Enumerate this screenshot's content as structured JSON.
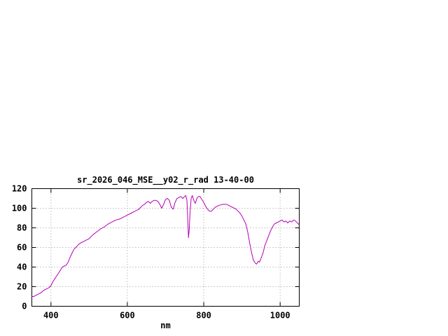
{
  "window": {
    "background": "#ffffff"
  },
  "chart_data": {
    "type": "line",
    "title": "sr_2026_046_MSE__y02_r_rad 13-40-00",
    "xlabel": "nm",
    "ylabel": "",
    "xlim": [
      350,
      1050
    ],
    "ylim": [
      0,
      120
    ],
    "xticks": [
      400,
      600,
      800,
      1000
    ],
    "yticks": [
      0,
      20,
      40,
      60,
      80,
      100,
      120
    ],
    "grid": true,
    "legend_position": "none",
    "line_color": "#b400b4",
    "axis_color": "#000000",
    "grid_color": "#9a9a9a",
    "series": [
      {
        "x": [
          350,
          355,
          360,
          365,
          370,
          375,
          380,
          385,
          390,
          395,
          400,
          405,
          410,
          415,
          420,
          425,
          430,
          435,
          440,
          445,
          450,
          455,
          460,
          465,
          470,
          475,
          480,
          485,
          490,
          495,
          500,
          510,
          520,
          530,
          540,
          550,
          560,
          570,
          580,
          590,
          600,
          610,
          620,
          630,
          640,
          645,
          650,
          655,
          660,
          665,
          670,
          675,
          680,
          685,
          690,
          695,
          700,
          705,
          710,
          715,
          720,
          725,
          730,
          735,
          740,
          745,
          750,
          753,
          756,
          758,
          760,
          762,
          764,
          767,
          770,
          774,
          778,
          782,
          786,
          790,
          795,
          800,
          805,
          810,
          815,
          820,
          825,
          830,
          840,
          850,
          860,
          870,
          880,
          885,
          890,
          895,
          900,
          905,
          910,
          915,
          920,
          925,
          930,
          935,
          938,
          940,
          943,
          946,
          950,
          955,
          960,
          965,
          970,
          975,
          980,
          985,
          990,
          995,
          1000,
          1005,
          1010,
          1015,
          1020,
          1025,
          1030,
          1035,
          1040,
          1045,
          1050
        ],
        "y": [
          10,
          10,
          11,
          12,
          13,
          14,
          16,
          17,
          18,
          19,
          21,
          25,
          28,
          31,
          34,
          37,
          40,
          41,
          42,
          45,
          50,
          54,
          58,
          60,
          62,
          64,
          65,
          66,
          67,
          68,
          69,
          73,
          76,
          79,
          81,
          84,
          86,
          88,
          89,
          91,
          93,
          95,
          97,
          99,
          103,
          104,
          106,
          107,
          105,
          107,
          108,
          108,
          107,
          104,
          100,
          104,
          109,
          110,
          108,
          101,
          99,
          106,
          110,
          111,
          112,
          110,
          112,
          113,
          108,
          90,
          70,
          78,
          95,
          110,
          113,
          108,
          105,
          110,
          112,
          112,
          109,
          106,
          102,
          99,
          97,
          97,
          99,
          101,
          103,
          104,
          104,
          102,
          100,
          99,
          97,
          95,
          92,
          88,
          84,
          76,
          65,
          55,
          47,
          44,
          43,
          44,
          46,
          45,
          49,
          54,
          62,
          67,
          72,
          77,
          81,
          84,
          85,
          86,
          87,
          88,
          86,
          87,
          85,
          87,
          86,
          88,
          87,
          85,
          83
        ]
      }
    ]
  }
}
